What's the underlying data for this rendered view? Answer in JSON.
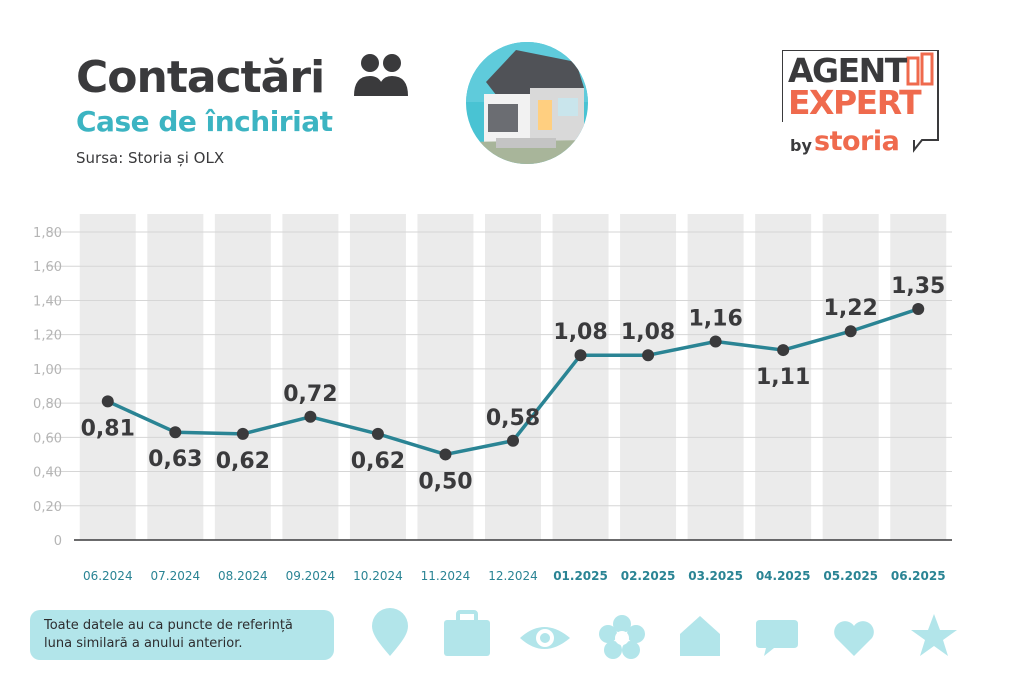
{
  "header": {
    "title": "Contactări",
    "subtitle": "Case de închiriat",
    "source": "Sursa: Storia și OLX"
  },
  "logo": {
    "line1": "AGENT",
    "line2": "EXPERT",
    "by": "by",
    "brand": "storia"
  },
  "note": {
    "line1": "Toate datele au ca puncte de referință",
    "line2": "luna similară a anului anterior."
  },
  "decorative_icons": [
    "location-pin-icon",
    "briefcase-icon",
    "eye-icon",
    "flower-icon",
    "house-icon",
    "speech-bubble-icon",
    "heart-icon",
    "star-icon"
  ],
  "colors": {
    "line": "#2a8494",
    "marker": "#3a3a3c",
    "column_band": "#ebebeb",
    "accent": "#3cb4c2",
    "brand": "#ef6a4d",
    "icon_fill": "#b2e5ea"
  },
  "chart_data": {
    "type": "line",
    "categories": [
      "06.2024",
      "07.2024",
      "08.2024",
      "09.2024",
      "10.2024",
      "11.2024",
      "12.2024",
      "01.2025",
      "02.2025",
      "03.2025",
      "04.2025",
      "05.2025",
      "06.2025"
    ],
    "bold_categories": [
      "01.2025",
      "02.2025",
      "03.2025",
      "04.2025",
      "05.2025",
      "06.2025"
    ],
    "values": [
      0.81,
      0.63,
      0.62,
      0.72,
      0.62,
      0.5,
      0.58,
      1.08,
      1.08,
      1.16,
      1.11,
      1.22,
      1.35
    ],
    "data_labels": [
      "0,81",
      "0,63",
      "0,62",
      "0,72",
      "0,62",
      "0,50",
      "0,58",
      "1,08",
      "1,08",
      "1,16",
      "1,11",
      "1,22",
      "1,35"
    ],
    "label_positions": [
      "below",
      "below",
      "below",
      "above",
      "below",
      "below",
      "above",
      "above",
      "above",
      "above",
      "below",
      "above",
      "above"
    ],
    "y_ticks": [
      "0",
      "0,20",
      "0,40",
      "0,60",
      "0,80",
      "1,00",
      "1,20",
      "1,40",
      "1,60",
      "1,80"
    ],
    "ylim": [
      0,
      1.8
    ],
    "grid": true,
    "legend": "none"
  }
}
